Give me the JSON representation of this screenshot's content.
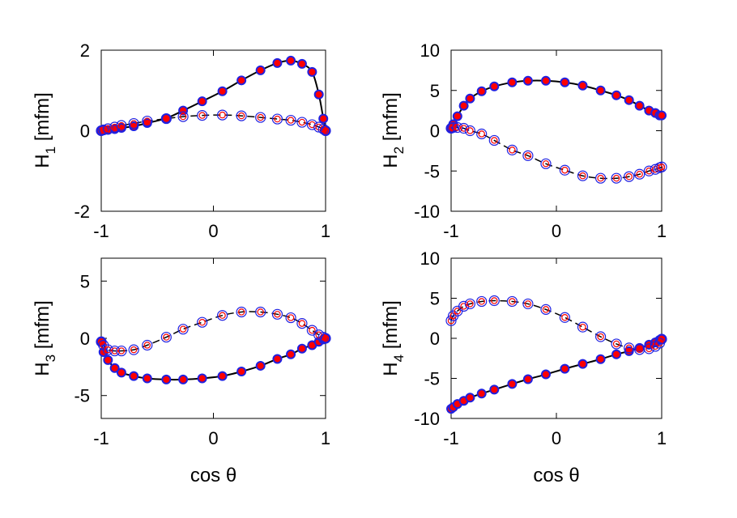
{
  "colors": {
    "line": "#000000",
    "marker_edge": "#2020e0",
    "marker_fill": "#ff0000",
    "background": "#ffffff"
  },
  "chart_data": [
    {
      "type": "line",
      "panel": "top-left",
      "ylabel_main": "H",
      "ylabel_sub": "1",
      "ylabel_unit": " [mfm]",
      "xlabel": "",
      "xlim": [
        -1,
        1
      ],
      "ylim": [
        -2,
        2
      ],
      "xticks": [
        "-1",
        "0",
        "1"
      ],
      "yticks": [
        "-2",
        "0",
        "2"
      ],
      "ytick_values": [
        -2,
        0,
        2
      ],
      "series": [
        {
          "name": "solid",
          "style": "solid",
          "marker": "filled",
          "x": [
            -1,
            -0.98,
            -0.94,
            -0.88,
            -0.82,
            -0.71,
            -0.59,
            -0.42,
            -0.27,
            -0.1,
            0.08,
            0.25,
            0.42,
            0.57,
            0.69,
            0.79,
            0.88,
            0.94,
            0.98,
            1.0
          ],
          "y": [
            0.0,
            0.01,
            0.02,
            0.04,
            0.07,
            0.11,
            0.19,
            0.31,
            0.5,
            0.73,
            0.98,
            1.25,
            1.5,
            1.68,
            1.74,
            1.66,
            1.46,
            0.9,
            0.3,
            0.0
          ]
        },
        {
          "name": "dashed",
          "style": "dashed",
          "marker": "open",
          "x": [
            -1,
            -0.98,
            -0.94,
            -0.88,
            -0.82,
            -0.71,
            -0.59,
            -0.42,
            -0.27,
            -0.1,
            0.08,
            0.25,
            0.42,
            0.57,
            0.69,
            0.79,
            0.88,
            0.94,
            0.98,
            1.0
          ],
          "y": [
            0.0,
            0.02,
            0.05,
            0.09,
            0.13,
            0.18,
            0.24,
            0.3,
            0.35,
            0.38,
            0.39,
            0.37,
            0.33,
            0.29,
            0.26,
            0.21,
            0.15,
            0.09,
            0.04,
            0.0
          ]
        }
      ]
    },
    {
      "type": "line",
      "panel": "top-right",
      "ylabel_main": "H",
      "ylabel_sub": "2",
      "ylabel_unit": " [mfm]",
      "xlabel": "",
      "xlim": [
        -1,
        1
      ],
      "ylim": [
        -10,
        10
      ],
      "xticks": [
        "-1",
        "0",
        "1"
      ],
      "yticks": [
        "-10",
        "-5",
        "0",
        "5",
        "10"
      ],
      "ytick_values": [
        -10,
        -5,
        0,
        5,
        10
      ],
      "series": [
        {
          "name": "solid",
          "style": "solid",
          "marker": "filled",
          "x": [
            -1,
            -0.98,
            -0.94,
            -0.88,
            -0.82,
            -0.71,
            -0.59,
            -0.42,
            -0.27,
            -0.1,
            0.08,
            0.25,
            0.42,
            0.57,
            0.69,
            0.79,
            0.88,
            0.94,
            0.98,
            1.0
          ],
          "y": [
            0.3,
            0.8,
            1.8,
            3.1,
            4.0,
            4.9,
            5.5,
            6.0,
            6.2,
            6.2,
            6.0,
            5.6,
            5.0,
            4.4,
            3.8,
            3.1,
            2.5,
            2.2,
            1.9,
            1.9
          ]
        },
        {
          "name": "dashed",
          "style": "dashed",
          "marker": "open",
          "x": [
            -1,
            -0.98,
            -0.94,
            -0.88,
            -0.82,
            -0.71,
            -0.59,
            -0.42,
            -0.27,
            -0.1,
            0.08,
            0.25,
            0.42,
            0.57,
            0.69,
            0.79,
            0.88,
            0.94,
            0.98,
            1.0
          ],
          "y": [
            0.3,
            0.4,
            0.4,
            0.3,
            0.0,
            -0.4,
            -1.2,
            -2.4,
            -3.1,
            -4.1,
            -4.9,
            -5.6,
            -5.9,
            -5.9,
            -5.7,
            -5.4,
            -5.0,
            -4.8,
            -4.6,
            -4.5
          ]
        }
      ]
    },
    {
      "type": "line",
      "panel": "bottom-left",
      "ylabel_main": "H",
      "ylabel_sub": "3",
      "ylabel_unit": " [mfm]",
      "xlabel": "cos θ",
      "xlim": [
        -1,
        1
      ],
      "ylim": [
        -7,
        7
      ],
      "xticks": [
        "-1",
        "0",
        "1"
      ],
      "yticks": [
        "-5",
        "0",
        "5"
      ],
      "ytick_values": [
        -5,
        0,
        5
      ],
      "series": [
        {
          "name": "solid",
          "style": "solid",
          "marker": "filled",
          "x": [
            -1,
            -0.98,
            -0.94,
            -0.88,
            -0.82,
            -0.71,
            -0.59,
            -0.42,
            -0.27,
            -0.1,
            0.08,
            0.25,
            0.42,
            0.57,
            0.69,
            0.79,
            0.88,
            0.94,
            0.98,
            1.0
          ],
          "y": [
            -0.3,
            -1.2,
            -1.9,
            -2.6,
            -3.0,
            -3.3,
            -3.5,
            -3.6,
            -3.6,
            -3.5,
            -3.3,
            -2.9,
            -2.4,
            -1.8,
            -1.4,
            -0.9,
            -0.6,
            -0.3,
            -0.1,
            0.0
          ]
        },
        {
          "name": "dashed",
          "style": "dashed",
          "marker": "open",
          "x": [
            -1,
            -0.98,
            -0.94,
            -0.88,
            -0.82,
            -0.71,
            -0.59,
            -0.42,
            -0.27,
            -0.1,
            0.08,
            0.25,
            0.42,
            0.57,
            0.69,
            0.79,
            0.88,
            0.94,
            0.98,
            1.0
          ],
          "y": [
            -0.3,
            -0.6,
            -1.0,
            -1.1,
            -1.1,
            -1.0,
            -0.6,
            0.1,
            0.8,
            1.4,
            2.0,
            2.3,
            2.3,
            2.1,
            1.8,
            1.3,
            0.7,
            0.3,
            0.1,
            0.0
          ]
        }
      ]
    },
    {
      "type": "line",
      "panel": "bottom-right",
      "ylabel_main": "H",
      "ylabel_sub": "4",
      "ylabel_unit": " [mfm]",
      "xlabel": "cos θ",
      "xlim": [
        -1,
        1
      ],
      "ylim": [
        -10,
        10
      ],
      "xticks": [
        "-1",
        "0",
        "1"
      ],
      "yticks": [
        "-10",
        "-5",
        "0",
        "5",
        "10"
      ],
      "ytick_values": [
        -10,
        -5,
        0,
        5,
        10
      ],
      "series": [
        {
          "name": "solid",
          "style": "solid",
          "marker": "filled",
          "x": [
            -1,
            -0.98,
            -0.94,
            -0.88,
            -0.82,
            -0.71,
            -0.59,
            -0.42,
            -0.27,
            -0.1,
            0.08,
            0.25,
            0.42,
            0.57,
            0.69,
            0.79,
            0.88,
            0.94,
            0.98,
            1.0
          ],
          "y": [
            -8.8,
            -8.6,
            -8.2,
            -7.8,
            -7.4,
            -6.9,
            -6.4,
            -5.7,
            -5.1,
            -4.5,
            -3.8,
            -3.2,
            -2.6,
            -2.0,
            -1.6,
            -1.2,
            -0.8,
            -0.5,
            -0.2,
            -0.1
          ]
        },
        {
          "name": "dashed",
          "style": "dashed",
          "marker": "open",
          "x": [
            -1,
            -0.98,
            -0.94,
            -0.88,
            -0.82,
            -0.71,
            -0.59,
            -0.42,
            -0.27,
            -0.1,
            0.08,
            0.25,
            0.42,
            0.57,
            0.69,
            0.79,
            0.88,
            0.94,
            0.98,
            1.0
          ],
          "y": [
            2.2,
            2.8,
            3.4,
            4.0,
            4.3,
            4.6,
            4.7,
            4.6,
            4.3,
            3.6,
            2.6,
            1.4,
            0.2,
            -0.7,
            -1.2,
            -1.4,
            -1.3,
            -1.0,
            -0.6,
            -0.1
          ]
        }
      ]
    }
  ]
}
